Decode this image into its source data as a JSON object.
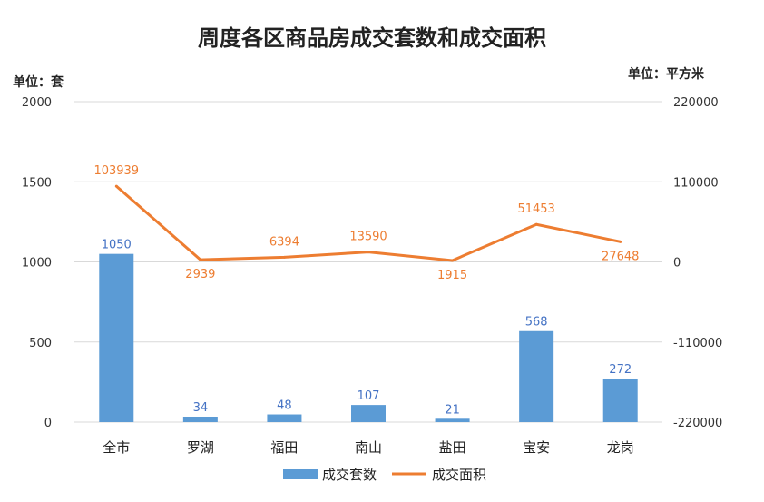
{
  "chart_data": {
    "type": "bar+line",
    "title": "周度各区商品房成交套数和成交面积",
    "left_unit": "单位：套",
    "right_unit": "单位：平方米",
    "categories": [
      "全市",
      "罗湖",
      "福田",
      "南山",
      "盐田",
      "宝安",
      "龙岗"
    ],
    "left_axis": {
      "range": [
        0,
        2000
      ],
      "ticks": [
        "0",
        "500",
        "1000",
        "1500",
        "2000"
      ]
    },
    "right_axis": {
      "range": [
        -220000,
        220000
      ],
      "ticks": [
        "-220000",
        "-110000",
        "0",
        "110000",
        "220000"
      ]
    },
    "series": [
      {
        "name": "成交套数",
        "type": "bar",
        "axis": "left",
        "color": "#5b9bd5",
        "values": [
          1050,
          34,
          48,
          107,
          21,
          568,
          272
        ],
        "labels": [
          "1050",
          "34",
          "48",
          "107",
          "21",
          "568",
          "272"
        ]
      },
      {
        "name": "成交面积",
        "type": "line",
        "axis": "right",
        "color": "#ed7d31",
        "values": [
          103939,
          2939,
          6394,
          13590,
          1915,
          51453,
          27648
        ],
        "labels": [
          "103939",
          "2939",
          "6394",
          "13590",
          "1915",
          "51453",
          "27648"
        ]
      }
    ],
    "legend_position": "bottom"
  }
}
